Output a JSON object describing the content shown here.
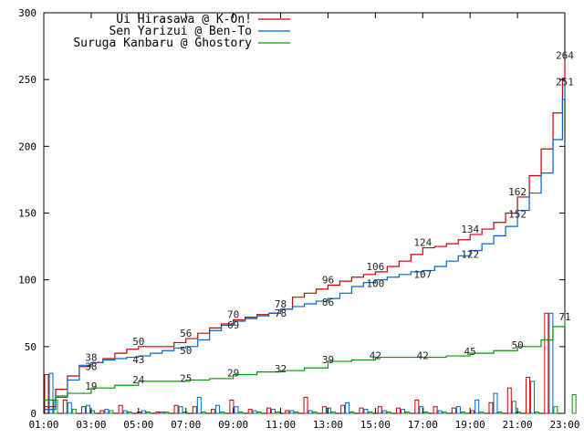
{
  "chart_data": {
    "type": "line",
    "title": "",
    "xlabel": "",
    "ylabel": "",
    "xlim": [
      1,
      23
    ],
    "ylim": [
      0,
      300
    ],
    "grid": false,
    "legend_position": "top",
    "x_tick_labels": [
      "01:00",
      "03:00",
      "05:00",
      "07:00",
      "09:00",
      "11:00",
      "13:00",
      "15:00",
      "17:00",
      "19:00",
      "21:00",
      "23:00"
    ],
    "x_tick_values": [
      1,
      3,
      5,
      7,
      9,
      11,
      13,
      15,
      17,
      19,
      21,
      23
    ],
    "y_tick_values": [
      0,
      50,
      100,
      150,
      200,
      250,
      300
    ],
    "series": [
      {
        "name": "Ui Hirasawa @ K-On!",
        "color": "#cc0000",
        "cumulative": [
          [
            1,
            5
          ],
          [
            1.5,
            18
          ],
          [
            2,
            28
          ],
          [
            2.5,
            35
          ],
          [
            3,
            38
          ],
          [
            3.5,
            41
          ],
          [
            4,
            45
          ],
          [
            4.5,
            48
          ],
          [
            5,
            50
          ],
          [
            5.5,
            50
          ],
          [
            6,
            50
          ],
          [
            6.5,
            53
          ],
          [
            7,
            56
          ],
          [
            7.5,
            60
          ],
          [
            8,
            64
          ],
          [
            8.5,
            67
          ],
          [
            9,
            70
          ],
          [
            9.5,
            72
          ],
          [
            10,
            74
          ],
          [
            10.5,
            75
          ],
          [
            11,
            78
          ],
          [
            11.5,
            87
          ],
          [
            12,
            90
          ],
          [
            12.5,
            93
          ],
          [
            13,
            96
          ],
          [
            13.5,
            99
          ],
          [
            14,
            102
          ],
          [
            14.5,
            104
          ],
          [
            15,
            106
          ],
          [
            15.5,
            110
          ],
          [
            16,
            114
          ],
          [
            16.5,
            119
          ],
          [
            17,
            124
          ],
          [
            17.5,
            125
          ],
          [
            18,
            127
          ],
          [
            18.5,
            130
          ],
          [
            19,
            134
          ],
          [
            19.5,
            138
          ],
          [
            20,
            143
          ],
          [
            20.5,
            150
          ],
          [
            21,
            162
          ],
          [
            21.5,
            178
          ],
          [
            22,
            198
          ],
          [
            22.5,
            225
          ],
          [
            22.9,
            251
          ],
          [
            23,
            264
          ]
        ],
        "labels": [
          [
            3,
            38
          ],
          [
            5,
            50
          ],
          [
            7,
            56
          ],
          [
            9,
            70
          ],
          [
            11,
            78
          ],
          [
            13,
            96
          ],
          [
            15,
            106
          ],
          [
            17,
            124
          ],
          [
            19,
            134
          ],
          [
            21,
            162
          ],
          [
            23,
            264
          ]
        ],
        "hourly": [
          29,
          10,
          5,
          2,
          6,
          1,
          1,
          6,
          5,
          3,
          10,
          3,
          4,
          2,
          12,
          5,
          6,
          4,
          5,
          4,
          10,
          5,
          4,
          2,
          8,
          19,
          27,
          75
        ]
      },
      {
        "name": "Sen Yarizui @ Ben-To",
        "color": "#0066cc",
        "cumulative": [
          [
            1,
            3
          ],
          [
            1.5,
            12
          ],
          [
            2,
            25
          ],
          [
            2.5,
            36
          ],
          [
            3,
            38
          ],
          [
            3.5,
            40
          ],
          [
            4,
            41
          ],
          [
            4.5,
            42
          ],
          [
            5,
            43
          ],
          [
            5.5,
            45
          ],
          [
            6,
            47
          ],
          [
            6.5,
            49
          ],
          [
            7,
            50
          ],
          [
            7.5,
            55
          ],
          [
            8,
            62
          ],
          [
            8.5,
            66
          ],
          [
            9,
            69
          ],
          [
            9.5,
            71
          ],
          [
            10,
            73
          ],
          [
            10.5,
            75
          ],
          [
            11,
            78
          ],
          [
            11.5,
            80
          ],
          [
            12,
            82
          ],
          [
            12.5,
            84
          ],
          [
            13,
            86
          ],
          [
            13.5,
            90
          ],
          [
            14,
            95
          ],
          [
            14.5,
            98
          ],
          [
            15,
            100
          ],
          [
            15.5,
            102
          ],
          [
            16,
            104
          ],
          [
            16.5,
            106
          ],
          [
            17,
            107
          ],
          [
            17.5,
            110
          ],
          [
            18,
            114
          ],
          [
            18.5,
            118
          ],
          [
            19,
            122
          ],
          [
            19.5,
            127
          ],
          [
            20,
            133
          ],
          [
            20.5,
            140
          ],
          [
            21,
            152
          ],
          [
            21.5,
            165
          ],
          [
            22,
            180
          ],
          [
            22.5,
            205
          ],
          [
            22.9,
            235
          ],
          [
            23,
            251
          ]
        ],
        "labels": [
          [
            3,
            38
          ],
          [
            5,
            43
          ],
          [
            7,
            50
          ],
          [
            9,
            69
          ],
          [
            11,
            78
          ],
          [
            13,
            86
          ],
          [
            15,
            100
          ],
          [
            17,
            107
          ],
          [
            19,
            122
          ],
          [
            21,
            152
          ],
          [
            23,
            251
          ]
        ],
        "hourly": [
          30,
          8,
          6,
          3,
          2,
          2,
          1,
          5,
          12,
          6,
          5,
          2,
          3,
          2,
          2,
          4,
          8,
          3,
          2,
          3,
          5,
          2,
          5,
          10,
          15,
          9,
          24,
          75
        ]
      },
      {
        "name": "Suruga Kanbaru @ Ghostory",
        "color": "#009900",
        "cumulative": [
          [
            1,
            10
          ],
          [
            1.5,
            13
          ],
          [
            2,
            15
          ],
          [
            3,
            19
          ],
          [
            4,
            21
          ],
          [
            5,
            24
          ],
          [
            6,
            24
          ],
          [
            7,
            25
          ],
          [
            8,
            26
          ],
          [
            9,
            29
          ],
          [
            10,
            31
          ],
          [
            11,
            32
          ],
          [
            12,
            34
          ],
          [
            13,
            39
          ],
          [
            14,
            40
          ],
          [
            15,
            42
          ],
          [
            16,
            42
          ],
          [
            17,
            42
          ],
          [
            18,
            43
          ],
          [
            19,
            45
          ],
          [
            20,
            47
          ],
          [
            21,
            50
          ],
          [
            22,
            55
          ],
          [
            22.5,
            65
          ],
          [
            23,
            71
          ]
        ],
        "labels": [
          [
            3,
            19
          ],
          [
            5,
            24
          ],
          [
            7,
            25
          ],
          [
            9,
            29
          ],
          [
            11,
            32
          ],
          [
            13,
            39
          ],
          [
            15,
            42
          ],
          [
            17,
            42
          ],
          [
            19,
            45
          ],
          [
            21,
            50
          ],
          [
            23,
            71
          ]
        ],
        "hourly": [
          10,
          3,
          2,
          2,
          1,
          1,
          1,
          1,
          1,
          1,
          1,
          1,
          1,
          1,
          1,
          1,
          1,
          1,
          1,
          1,
          1,
          1,
          1,
          1,
          1,
          1,
          1,
          5,
          14
        ]
      }
    ]
  }
}
